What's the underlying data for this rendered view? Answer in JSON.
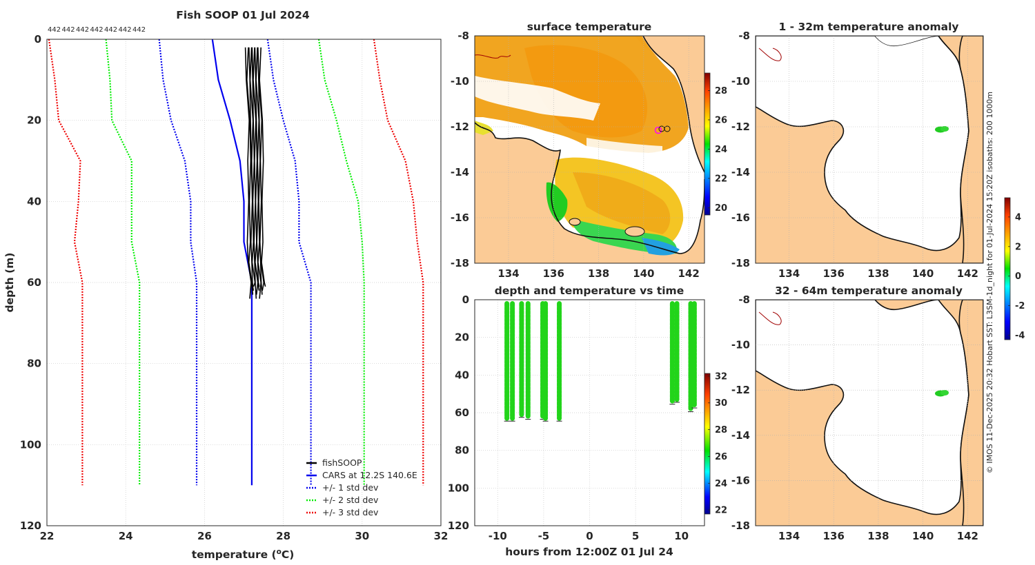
{
  "chart_data": [
    {
      "type": "line",
      "panel": "profile",
      "title": "Fish SOOP 01 Jul 2024",
      "count_labels": [
        "442",
        "442",
        "442",
        "442",
        "442",
        "442",
        "442"
      ],
      "xlabel_main": "temperature (",
      "xlabel_sup": "o",
      "xlabel_tail": "C)",
      "ylabel": "depth (m)",
      "xlim": [
        22,
        32
      ],
      "ylim": [
        0,
        120
      ],
      "xticks": [
        "22",
        "24",
        "26",
        "28",
        "30",
        "32"
      ],
      "yticks": [
        "0",
        "20",
        "40",
        "60",
        "80",
        "100",
        "120"
      ],
      "grid": true,
      "legend_position": "bottom-right",
      "series": [
        {
          "name": "fishSOOP",
          "color": "#000000",
          "style": "solid",
          "depth": [
            2,
            10,
            20,
            30,
            40,
            50,
            55,
            60,
            64
          ],
          "temp": [
            27.2,
            27.2,
            27.25,
            27.25,
            27.25,
            27.25,
            27.25,
            27.3,
            27.3
          ]
        },
        {
          "name": "CARS at 12.2S 140.6E",
          "color": "#0000ee",
          "style": "solid",
          "depth": [
            0,
            10,
            20,
            30,
            40,
            50,
            60,
            110
          ],
          "temp": [
            26.2,
            26.35,
            26.65,
            26.9,
            27.0,
            27.0,
            27.2,
            27.2
          ]
        },
        {
          "name": "+/- 1 std dev",
          "color": "#0000ee",
          "style": "dotted",
          "depth": [
            0,
            10,
            20,
            30,
            40,
            50,
            60,
            110
          ],
          "temp": [
            24.85,
            24.95,
            25.15,
            25.5,
            25.65,
            25.65,
            25.8,
            25.8
          ],
          "temp_hi": [
            27.6,
            27.75,
            28.0,
            28.3,
            28.4,
            28.4,
            28.7,
            28.7
          ]
        },
        {
          "name": "+/- 2 std dev",
          "color": "#00ee00",
          "style": "dotted",
          "depth": [
            0,
            10,
            20,
            30,
            40,
            50,
            60,
            110
          ],
          "temp": [
            23.5,
            23.6,
            23.65,
            24.15,
            24.15,
            24.15,
            24.35,
            24.35
          ],
          "temp_hi": [
            28.9,
            29.05,
            29.35,
            29.6,
            29.9,
            30.0,
            30.05,
            30.05
          ]
        },
        {
          "name": "+/- 3 std dev",
          "color": "#ee0000",
          "style": "dotted",
          "depth": [
            0,
            10,
            20,
            30,
            40,
            50,
            60,
            110
          ],
          "temp": [
            22.05,
            22.2,
            22.3,
            22.85,
            22.8,
            22.7,
            22.9,
            22.9
          ],
          "temp_hi": [
            30.3,
            30.45,
            30.65,
            31.1,
            31.3,
            31.4,
            31.55,
            31.55
          ]
        }
      ]
    },
    {
      "type": "heatmap",
      "panel": "sst-map",
      "title": "surface temperature",
      "xlim": [
        132.5,
        142.7
      ],
      "ylim": [
        -18,
        -8
      ],
      "xticks": [
        "134",
        "136",
        "138",
        "140",
        "142"
      ],
      "yticks": [
        "-8",
        "-10",
        "-12",
        "-14",
        "-16",
        "-18"
      ],
      "colorbar": {
        "range": [
          19.5,
          29.2
        ],
        "ticks": [
          "20",
          "22",
          "24",
          "26",
          "28"
        ]
      }
    },
    {
      "type": "scatter",
      "panel": "depth-time",
      "title": "depth and temperature vs time",
      "xlabel": "hours from 12:00Z 01 Jul 24",
      "xlim": [
        -12.5,
        12.5
      ],
      "ylim": [
        0,
        120
      ],
      "xticks": [
        "-10",
        "-5",
        "0",
        "5",
        "10"
      ],
      "yticks": [
        "0",
        "20",
        "40",
        "60",
        "80",
        "100",
        "120"
      ],
      "casts": [
        {
          "hour": -9.0,
          "max_depth": 63
        },
        {
          "hour": -8.4,
          "max_depth": 63
        },
        {
          "hour": -7.4,
          "max_depth": 61
        },
        {
          "hour": -6.7,
          "max_depth": 62
        },
        {
          "hour": -5.1,
          "max_depth": 62
        },
        {
          "hour": -4.8,
          "max_depth": 63
        },
        {
          "hour": -3.3,
          "max_depth": 63
        },
        {
          "hour": 9.0,
          "max_depth": 54
        },
        {
          "hour": 9.5,
          "max_depth": 53
        },
        {
          "hour": 11.0,
          "max_depth": 58
        },
        {
          "hour": 11.4,
          "max_depth": 56
        }
      ],
      "colorbar": {
        "range": [
          21.7,
          32.2
        ],
        "ticks": [
          "22",
          "24",
          "26",
          "28",
          "30",
          "32"
        ]
      }
    },
    {
      "type": "heatmap",
      "panel": "anomaly-1-32",
      "title": "1 - 32m temperature anomaly",
      "xlim": [
        132.5,
        142.7
      ],
      "ylim": [
        -18,
        -8
      ],
      "xticks": [
        "134",
        "136",
        "138",
        "140",
        "142"
      ],
      "yticks": [
        "-8",
        "-10",
        "-12",
        "-14",
        "-16",
        "-18"
      ]
    },
    {
      "type": "heatmap",
      "panel": "anomaly-32-64",
      "title": "32 - 64m temperature anomaly",
      "xlim": [
        132.5,
        142.7
      ],
      "ylim": [
        -18,
        -8
      ],
      "xticks": [
        "134",
        "136",
        "138",
        "140",
        "142"
      ],
      "yticks": [
        "-8",
        "-10",
        "-12",
        "-14",
        "-16",
        "-18"
      ],
      "colorbar": {
        "range": [
          -4.3,
          5.3
        ],
        "ticks": [
          "-4",
          "-2",
          "0",
          "2",
          "4"
        ]
      }
    }
  ],
  "credit": "© IMOS 11-Dec-2025 20:32 Hobart SST: L3SM-1d_night for 01-Jul-2024 15:20Z isobaths: 200  1000m",
  "colors": {
    "land": "#fbcb96",
    "axis": "#262626",
    "grid": "#c8c8c8"
  }
}
